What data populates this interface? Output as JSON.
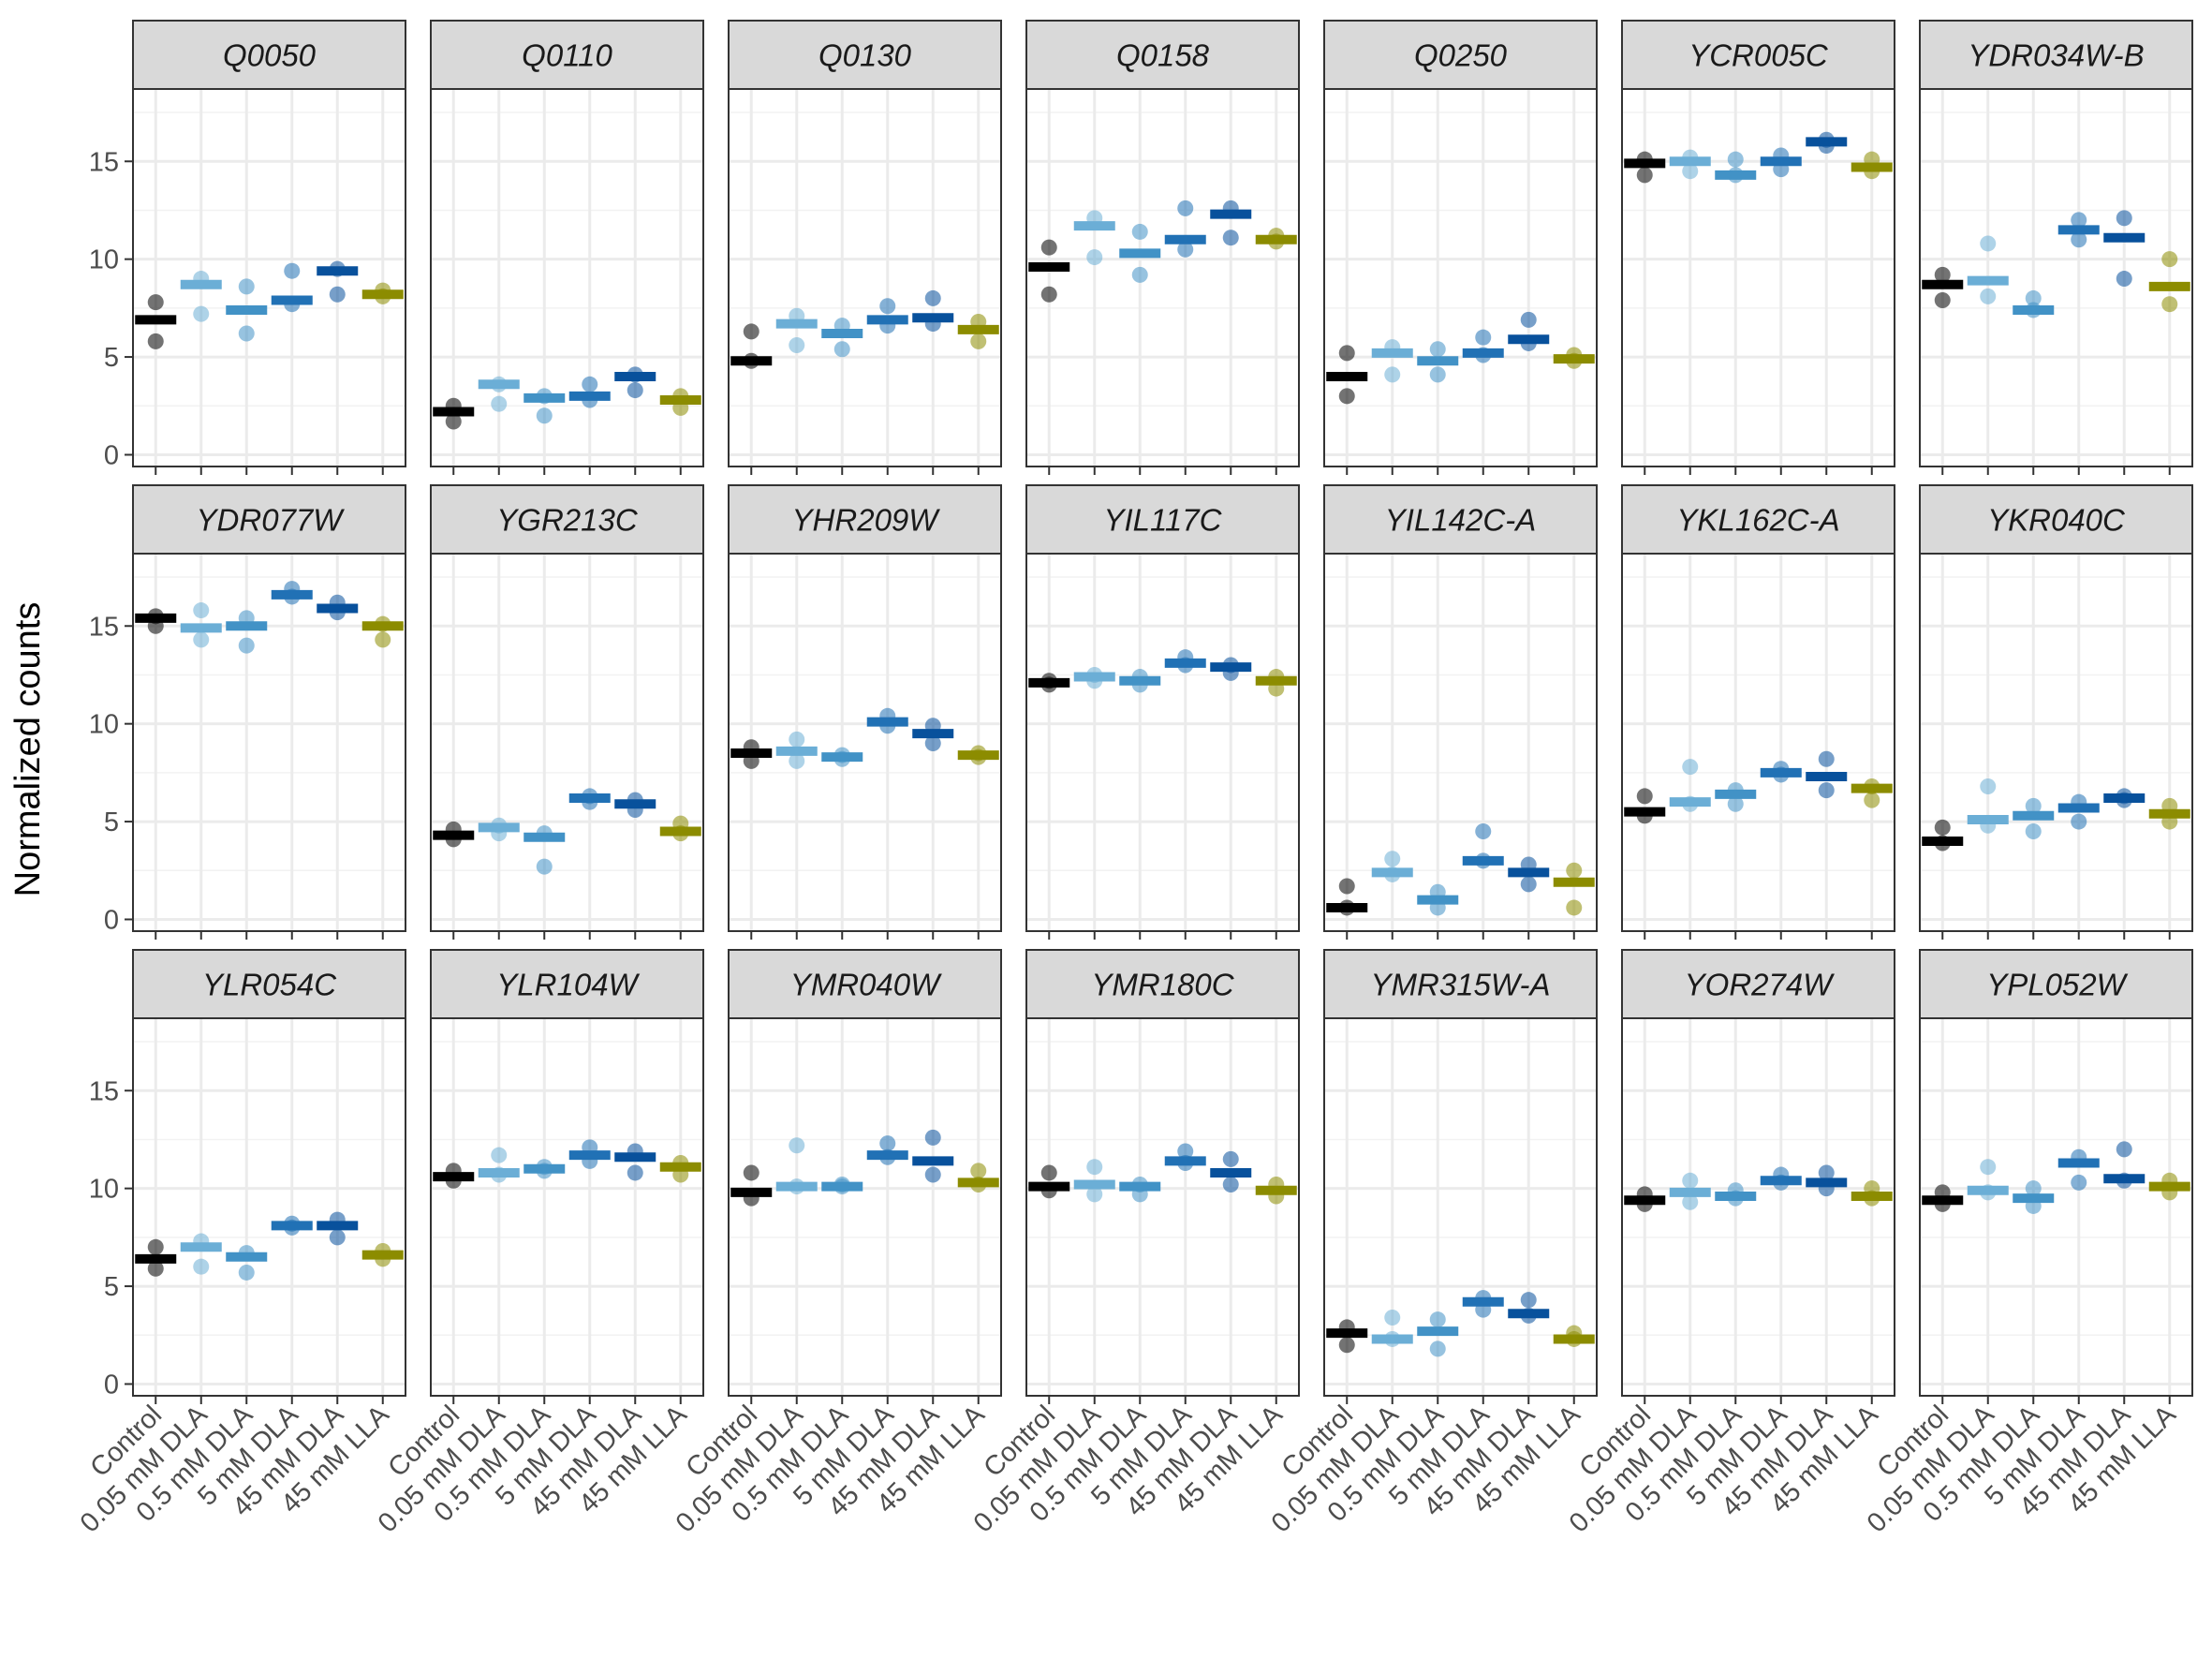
{
  "chart_data": {
    "type": "scatter",
    "ylabel": "Normalized counts",
    "xlabel": "",
    "ylim": [
      -0.6,
      18.7
    ],
    "yticks": [
      0,
      5,
      10,
      15
    ],
    "grid": true,
    "legend": "none",
    "categories": [
      "Control",
      "0.05 mM DLA",
      "0.5 mM DLA",
      "5 mM DLA",
      "45 mM DLA",
      "45 mM LLA"
    ],
    "colors": [
      "#000000",
      "#6baed6",
      "#4292c6",
      "#2171b5",
      "#08519c",
      "#8c8c00"
    ],
    "panels": [
      {
        "gene": "Q0050",
        "means": [
          6.9,
          8.7,
          7.4,
          7.9,
          9.4,
          8.2
        ],
        "points": [
          [
            7.8,
            5.8
          ],
          [
            9.0,
            7.2
          ],
          [
            8.6,
            6.2
          ],
          [
            9.4,
            7.7
          ],
          [
            9.5,
            8.2
          ],
          [
            8.4,
            8.1
          ]
        ]
      },
      {
        "gene": "Q0110",
        "means": [
          2.2,
          3.6,
          2.9,
          3.0,
          4.0,
          2.8
        ],
        "points": [
          [
            2.5,
            1.7
          ],
          [
            3.6,
            2.6
          ],
          [
            3.0,
            2.0
          ],
          [
            3.6,
            2.8
          ],
          [
            4.1,
            3.3
          ],
          [
            3.0,
            2.4
          ]
        ]
      },
      {
        "gene": "Q0130",
        "means": [
          4.8,
          6.7,
          6.2,
          6.9,
          7.0,
          6.4
        ],
        "points": [
          [
            6.3,
            4.8
          ],
          [
            7.1,
            5.6
          ],
          [
            6.6,
            5.4
          ],
          [
            7.6,
            6.6
          ],
          [
            8.0,
            6.7
          ],
          [
            6.8,
            5.8
          ]
        ]
      },
      {
        "gene": "Q0158",
        "means": [
          9.6,
          11.7,
          10.3,
          11.0,
          12.3,
          11.0
        ],
        "points": [
          [
            10.6,
            8.2
          ],
          [
            12.1,
            10.1
          ],
          [
            11.4,
            9.2
          ],
          [
            12.6,
            10.5
          ],
          [
            12.6,
            11.1
          ],
          [
            11.2,
            10.9
          ]
        ]
      },
      {
        "gene": "Q0250",
        "means": [
          4.0,
          5.2,
          4.8,
          5.2,
          5.9,
          4.9
        ],
        "points": [
          [
            5.2,
            3.0
          ],
          [
            5.5,
            4.1
          ],
          [
            5.4,
            4.1
          ],
          [
            6.0,
            5.1
          ],
          [
            6.9,
            5.7
          ],
          [
            5.1,
            4.8
          ]
        ]
      },
      {
        "gene": "YCR005C",
        "means": [
          14.9,
          15.0,
          14.3,
          15.0,
          16.0,
          14.7
        ],
        "points": [
          [
            15.1,
            14.3
          ],
          [
            15.2,
            14.5
          ],
          [
            15.1,
            14.3
          ],
          [
            15.3,
            14.6
          ],
          [
            16.1,
            15.8
          ],
          [
            15.1,
            14.5
          ]
        ]
      },
      {
        "gene": "YDR034W-B",
        "means": [
          8.7,
          8.9,
          7.4,
          11.5,
          11.1,
          8.6
        ],
        "points": [
          [
            9.2,
            7.9
          ],
          [
            10.8,
            8.1
          ],
          [
            8.0,
            7.4
          ],
          [
            12.0,
            11.0
          ],
          [
            12.1,
            9.0
          ],
          [
            10.0,
            7.7
          ]
        ]
      },
      {
        "gene": "YDR077W",
        "means": [
          15.4,
          14.9,
          15.0,
          16.6,
          15.9,
          15.0
        ],
        "points": [
          [
            15.5,
            15.0
          ],
          [
            15.8,
            14.3
          ],
          [
            15.4,
            14.0
          ],
          [
            16.9,
            16.5
          ],
          [
            16.2,
            15.7
          ],
          [
            15.1,
            14.3
          ]
        ]
      },
      {
        "gene": "YGR213C",
        "means": [
          4.3,
          4.7,
          4.2,
          6.2,
          5.9,
          4.5
        ],
        "points": [
          [
            4.6,
            4.1
          ],
          [
            4.8,
            4.4
          ],
          [
            4.4,
            2.7
          ],
          [
            6.3,
            6.0
          ],
          [
            6.1,
            5.6
          ],
          [
            4.9,
            4.4
          ]
        ]
      },
      {
        "gene": "YHR209W",
        "means": [
          8.5,
          8.6,
          8.3,
          10.1,
          9.5,
          8.4
        ],
        "points": [
          [
            8.8,
            8.1
          ],
          [
            9.2,
            8.1
          ],
          [
            8.4,
            8.2
          ],
          [
            10.4,
            9.9
          ],
          [
            9.9,
            9.0
          ],
          [
            8.5,
            8.3
          ]
        ]
      },
      {
        "gene": "YIL117C",
        "means": [
          12.1,
          12.4,
          12.2,
          13.1,
          12.9,
          12.2
        ],
        "points": [
          [
            12.2,
            12.0
          ],
          [
            12.5,
            12.2
          ],
          [
            12.4,
            12.0
          ],
          [
            13.4,
            13.0
          ],
          [
            13.0,
            12.6
          ],
          [
            12.4,
            11.8
          ]
        ]
      },
      {
        "gene": "YIL142C-A",
        "means": [
          0.6,
          2.4,
          1.0,
          3.0,
          2.4,
          1.9
        ],
        "points": [
          [
            1.7,
            0.6
          ],
          [
            3.1,
            2.3
          ],
          [
            1.4,
            0.6
          ],
          [
            4.5,
            3.0
          ],
          [
            2.8,
            1.8
          ],
          [
            2.5,
            0.6
          ]
        ]
      },
      {
        "gene": "YKL162C-A",
        "means": [
          5.5,
          6.0,
          6.4,
          7.5,
          7.3,
          6.7
        ],
        "points": [
          [
            6.3,
            5.3
          ],
          [
            7.8,
            5.9
          ],
          [
            6.6,
            5.9
          ],
          [
            7.7,
            7.4
          ],
          [
            8.2,
            6.6
          ],
          [
            6.8,
            6.1
          ]
        ]
      },
      {
        "gene": "YKR040C",
        "means": [
          4.0,
          5.1,
          5.3,
          5.7,
          6.2,
          5.4
        ],
        "points": [
          [
            4.7,
            3.9
          ],
          [
            6.8,
            4.8
          ],
          [
            5.8,
            4.5
          ],
          [
            6.0,
            5.0
          ],
          [
            6.3,
            6.1
          ],
          [
            5.8,
            5.0
          ]
        ]
      },
      {
        "gene": "YLR054C",
        "means": [
          6.4,
          7.0,
          6.5,
          8.1,
          8.1,
          6.6
        ],
        "points": [
          [
            7.0,
            5.9
          ],
          [
            7.3,
            6.0
          ],
          [
            6.7,
            5.7
          ],
          [
            8.2,
            8.0
          ],
          [
            8.4,
            7.5
          ],
          [
            6.8,
            6.4
          ]
        ]
      },
      {
        "gene": "YLR104W",
        "means": [
          10.6,
          10.8,
          11.0,
          11.7,
          11.6,
          11.1
        ],
        "points": [
          [
            10.9,
            10.4
          ],
          [
            11.7,
            10.7
          ],
          [
            11.1,
            10.9
          ],
          [
            12.1,
            11.4
          ],
          [
            11.9,
            10.8
          ],
          [
            11.3,
            10.7
          ]
        ]
      },
      {
        "gene": "YMR040W",
        "means": [
          9.8,
          10.1,
          10.1,
          11.7,
          11.4,
          10.3
        ],
        "points": [
          [
            10.8,
            9.5
          ],
          [
            12.2,
            10.1
          ],
          [
            10.2,
            10.1
          ],
          [
            12.3,
            11.6
          ],
          [
            12.6,
            10.7
          ],
          [
            10.9,
            10.2
          ]
        ]
      },
      {
        "gene": "YMR180C",
        "means": [
          10.1,
          10.2,
          10.1,
          11.4,
          10.8,
          9.9
        ],
        "points": [
          [
            10.8,
            9.9
          ],
          [
            11.1,
            9.7
          ],
          [
            10.2,
            9.7
          ],
          [
            11.9,
            11.3
          ],
          [
            11.5,
            10.2
          ],
          [
            10.2,
            9.6
          ]
        ]
      },
      {
        "gene": "YMR315W-A",
        "means": [
          2.6,
          2.3,
          2.7,
          4.2,
          3.6,
          2.3
        ],
        "points": [
          [
            2.9,
            2.0
          ],
          [
            3.4,
            2.3
          ],
          [
            3.3,
            1.8
          ],
          [
            4.4,
            3.8
          ],
          [
            4.3,
            3.5
          ],
          [
            2.6,
            2.3
          ]
        ]
      },
      {
        "gene": "YOR274W",
        "means": [
          9.4,
          9.8,
          9.6,
          10.4,
          10.3,
          9.6
        ],
        "points": [
          [
            9.7,
            9.2
          ],
          [
            10.4,
            9.3
          ],
          [
            9.9,
            9.5
          ],
          [
            10.7,
            10.3
          ],
          [
            10.8,
            10.0
          ],
          [
            10.0,
            9.5
          ]
        ]
      },
      {
        "gene": "YPL052W",
        "means": [
          9.4,
          9.9,
          9.5,
          11.3,
          10.5,
          10.1
        ],
        "points": [
          [
            9.8,
            9.2
          ],
          [
            11.1,
            9.8
          ],
          [
            10.0,
            9.1
          ],
          [
            11.6,
            10.3
          ],
          [
            12.0,
            10.4
          ],
          [
            10.4,
            9.8
          ]
        ]
      }
    ]
  }
}
